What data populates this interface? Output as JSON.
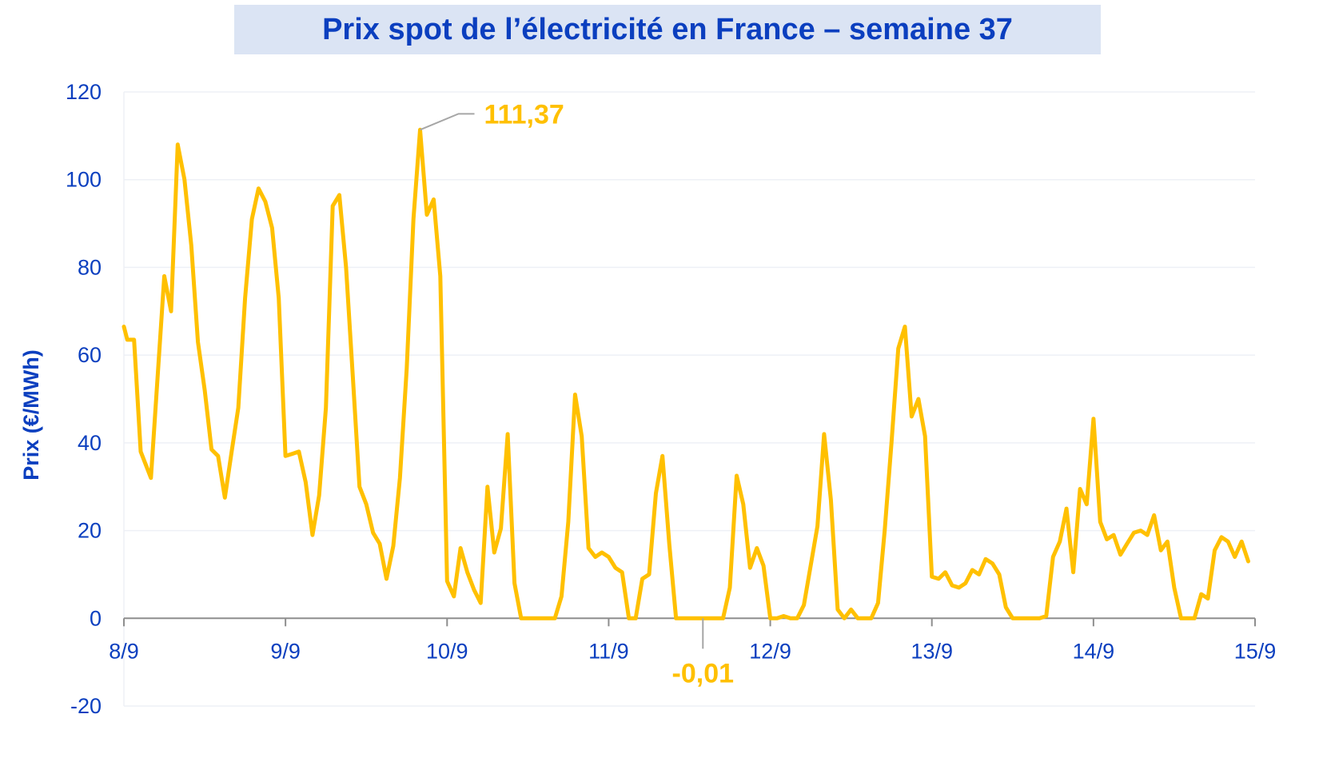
{
  "chart_data": {
    "type": "line",
    "title": "Prix spot de l’électricité en France – semaine 37",
    "ylabel": "Prix (€/MWh)",
    "xlabel": "",
    "ylim": [
      -20,
      120
    ],
    "yticks": [
      -20,
      0,
      20,
      40,
      60,
      80,
      100,
      120
    ],
    "xticks": [
      {
        "day": 0,
        "label": "8/9"
      },
      {
        "day": 1,
        "label": "9/9"
      },
      {
        "day": 2,
        "label": "10/9"
      },
      {
        "day": 3,
        "label": "11/9"
      },
      {
        "day": 4,
        "label": "12/9"
      },
      {
        "day": 5,
        "label": "13/9"
      },
      {
        "day": 6,
        "label": "14/9"
      },
      {
        "day": 7,
        "label": "15/9"
      }
    ],
    "xlim": [
      0,
      7
    ],
    "grid": true,
    "color": "#ffc000",
    "series": [
      {
        "name": "",
        "points": [
          [
            0.0,
            66.5
          ],
          [
            0.021,
            63.5
          ],
          [
            0.063,
            63.5
          ],
          [
            0.104,
            38
          ],
          [
            0.167,
            32
          ],
          [
            0.25,
            78
          ],
          [
            0.292,
            70
          ],
          [
            0.333,
            108
          ],
          [
            0.375,
            100
          ],
          [
            0.417,
            85
          ],
          [
            0.458,
            63
          ],
          [
            0.5,
            52
          ],
          [
            0.542,
            38.5
          ],
          [
            0.583,
            37
          ],
          [
            0.625,
            27.5
          ],
          [
            0.667,
            38
          ],
          [
            0.708,
            48
          ],
          [
            0.75,
            73
          ],
          [
            0.792,
            91
          ],
          [
            0.833,
            98
          ],
          [
            0.875,
            95
          ],
          [
            0.917,
            89
          ],
          [
            0.958,
            73
          ],
          [
            1.0,
            37
          ],
          [
            1.042,
            37.5
          ],
          [
            1.083,
            38
          ],
          [
            1.125,
            31
          ],
          [
            1.167,
            19
          ],
          [
            1.208,
            28
          ],
          [
            1.25,
            48
          ],
          [
            1.292,
            94
          ],
          [
            1.333,
            96.5
          ],
          [
            1.375,
            80
          ],
          [
            1.417,
            55
          ],
          [
            1.458,
            30
          ],
          [
            1.5,
            26
          ],
          [
            1.542,
            19.5
          ],
          [
            1.583,
            17
          ],
          [
            1.625,
            9
          ],
          [
            1.667,
            16.5
          ],
          [
            1.708,
            32
          ],
          [
            1.75,
            57
          ],
          [
            1.792,
            91
          ],
          [
            1.833,
            111.37
          ],
          [
            1.875,
            92
          ],
          [
            1.917,
            95.5
          ],
          [
            1.958,
            78
          ],
          [
            2.0,
            8.5
          ],
          [
            2.042,
            5
          ],
          [
            2.083,
            16
          ],
          [
            2.125,
            10.5
          ],
          [
            2.167,
            6.5
          ],
          [
            2.208,
            3.5
          ],
          [
            2.25,
            30
          ],
          [
            2.292,
            15
          ],
          [
            2.333,
            20.5
          ],
          [
            2.375,
            42
          ],
          [
            2.417,
            8
          ],
          [
            2.458,
            0
          ],
          [
            2.5,
            0
          ],
          [
            2.542,
            0
          ],
          [
            2.583,
            0
          ],
          [
            2.625,
            0
          ],
          [
            2.667,
            0
          ],
          [
            2.708,
            5
          ],
          [
            2.75,
            22
          ],
          [
            2.792,
            51
          ],
          [
            2.833,
            41.5
          ],
          [
            2.875,
            16
          ],
          [
            2.917,
            14
          ],
          [
            2.958,
            15
          ],
          [
            3.0,
            14
          ],
          [
            3.042,
            11.5
          ],
          [
            3.083,
            10.5
          ],
          [
            3.125,
            0
          ],
          [
            3.167,
            0
          ],
          [
            3.208,
            9
          ],
          [
            3.25,
            10
          ],
          [
            3.292,
            28.5
          ],
          [
            3.333,
            37
          ],
          [
            3.375,
            17
          ],
          [
            3.417,
            0
          ],
          [
            3.458,
            0
          ],
          [
            3.5,
            0
          ],
          [
            3.542,
            0
          ],
          [
            3.583,
            -0.01
          ],
          [
            3.625,
            0
          ],
          [
            3.667,
            0
          ],
          [
            3.708,
            0
          ],
          [
            3.75,
            7
          ],
          [
            3.792,
            32.5
          ],
          [
            3.833,
            26
          ],
          [
            3.875,
            11.5
          ],
          [
            3.917,
            16
          ],
          [
            3.958,
            12
          ],
          [
            4.0,
            0
          ],
          [
            4.042,
            0
          ],
          [
            4.083,
            0.5
          ],
          [
            4.125,
            0
          ],
          [
            4.167,
            0
          ],
          [
            4.208,
            3
          ],
          [
            4.25,
            12
          ],
          [
            4.292,
            21
          ],
          [
            4.333,
            42
          ],
          [
            4.375,
            27
          ],
          [
            4.417,
            2
          ],
          [
            4.458,
            0
          ],
          [
            4.5,
            2
          ],
          [
            4.542,
            0
          ],
          [
            4.583,
            0
          ],
          [
            4.625,
            0
          ],
          [
            4.667,
            3.5
          ],
          [
            4.708,
            20
          ],
          [
            4.75,
            40
          ],
          [
            4.792,
            61.5
          ],
          [
            4.833,
            66.5
          ],
          [
            4.875,
            46
          ],
          [
            4.917,
            50
          ],
          [
            4.958,
            41.5
          ],
          [
            5.0,
            9.5
          ],
          [
            5.042,
            9
          ],
          [
            5.083,
            10.5
          ],
          [
            5.125,
            7.5
          ],
          [
            5.167,
            7
          ],
          [
            5.208,
            8
          ],
          [
            5.25,
            11
          ],
          [
            5.292,
            10
          ],
          [
            5.333,
            13.5
          ],
          [
            5.375,
            12.5
          ],
          [
            5.417,
            10
          ],
          [
            5.458,
            2.5
          ],
          [
            5.5,
            0
          ],
          [
            5.542,
            0
          ],
          [
            5.583,
            0
          ],
          [
            5.625,
            0
          ],
          [
            5.667,
            0
          ],
          [
            5.708,
            0.5
          ],
          [
            5.75,
            14
          ],
          [
            5.792,
            17.5
          ],
          [
            5.833,
            25
          ],
          [
            5.875,
            10.5
          ],
          [
            5.917,
            29.5
          ],
          [
            5.958,
            26
          ],
          [
            6.0,
            45.5
          ],
          [
            6.042,
            22
          ],
          [
            6.083,
            18
          ],
          [
            6.125,
            19
          ],
          [
            6.167,
            14.5
          ],
          [
            6.208,
            17
          ],
          [
            6.25,
            19.5
          ],
          [
            6.292,
            20
          ],
          [
            6.333,
            19
          ],
          [
            6.375,
            23.5
          ],
          [
            6.417,
            15.5
          ],
          [
            6.458,
            17.5
          ],
          [
            6.5,
            7
          ],
          [
            6.542,
            0
          ],
          [
            6.583,
            0
          ],
          [
            6.625,
            0
          ],
          [
            6.667,
            5.5
          ],
          [
            6.708,
            4.5
          ],
          [
            6.75,
            15.5
          ],
          [
            6.792,
            18.5
          ],
          [
            6.833,
            17.5
          ],
          [
            6.875,
            14
          ],
          [
            6.917,
            17.5
          ],
          [
            6.958,
            13
          ]
        ]
      }
    ],
    "annotations": [
      {
        "day": 1.833,
        "value": 111.37,
        "label": "111,37"
      },
      {
        "day": 3.583,
        "value": -0.01,
        "label": "-0,01"
      }
    ]
  }
}
